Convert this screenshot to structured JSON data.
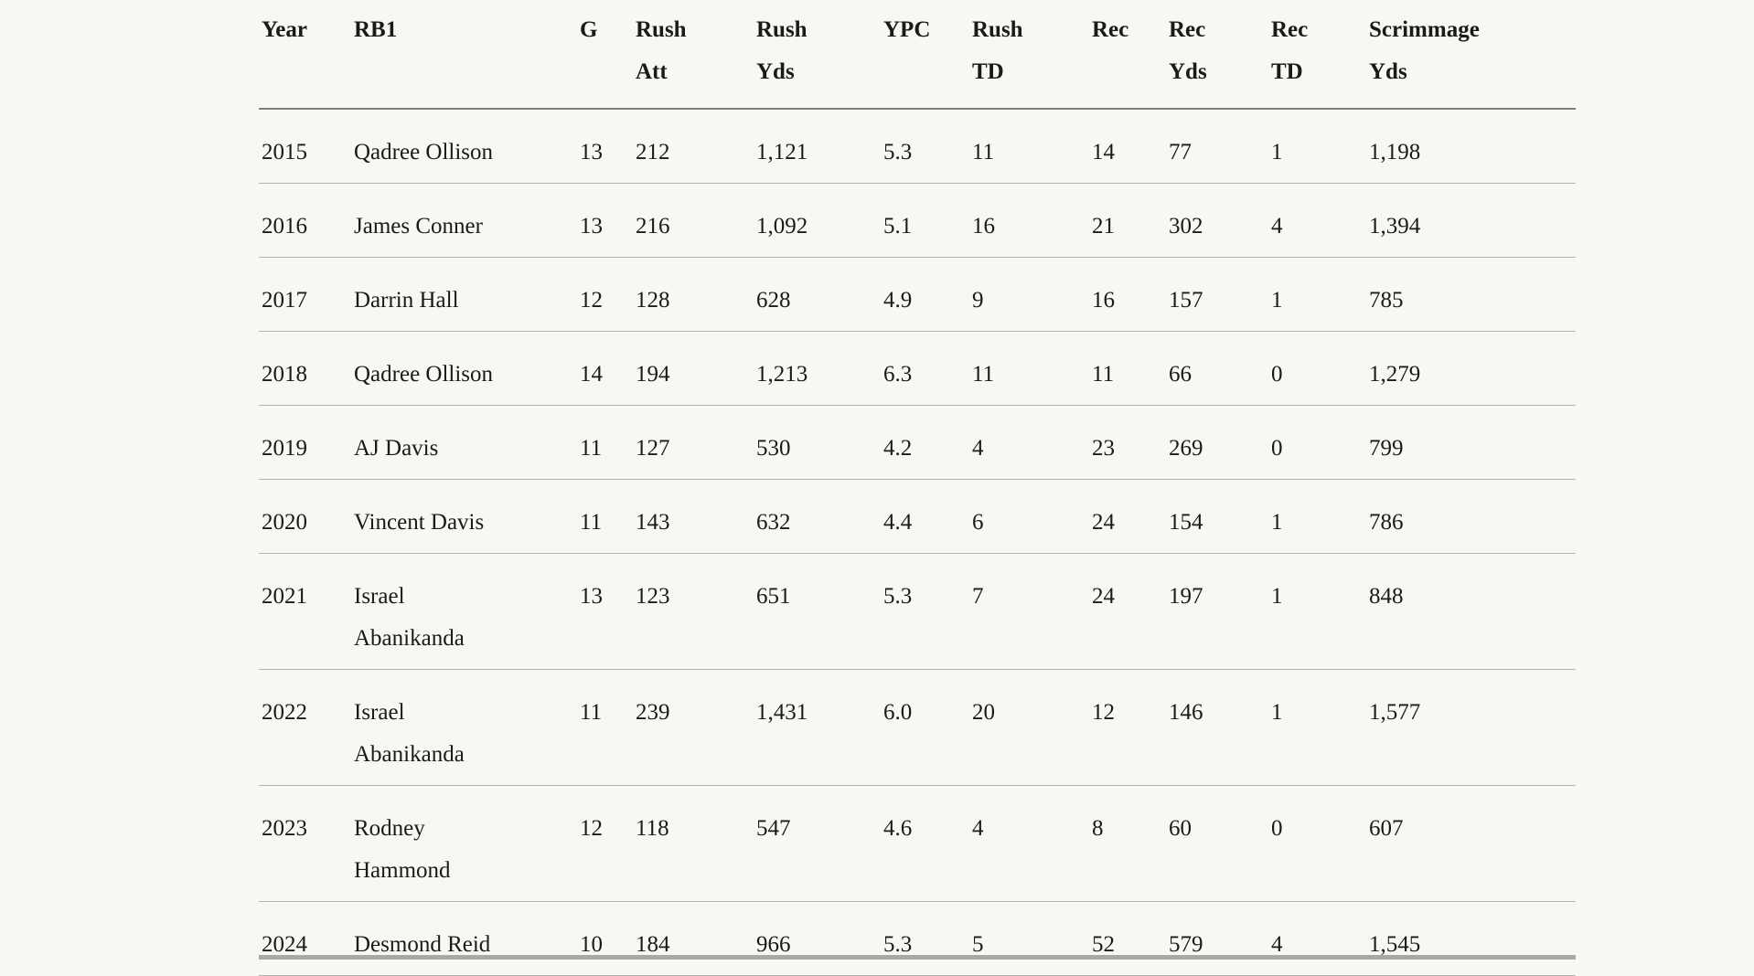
{
  "page": {
    "background_color": "#f8f7f2",
    "text_color": "#1b1a18",
    "header_rule_color": "#7e7d79",
    "row_rule_color": "#b5b3ae",
    "scrollbar_color": "#a9a8a3"
  },
  "table": {
    "columns": [
      {
        "id": "year",
        "label": "Year"
      },
      {
        "id": "rb1",
        "label": "RB1"
      },
      {
        "id": "g",
        "label": "G"
      },
      {
        "id": "rush_att",
        "label": "Rush Att"
      },
      {
        "id": "rush_yds",
        "label": "Rush Yds"
      },
      {
        "id": "ypc",
        "label": "YPC"
      },
      {
        "id": "rush_td",
        "label": "Rush TD"
      },
      {
        "id": "rec",
        "label": "Rec"
      },
      {
        "id": "rec_yds",
        "label": "Rec Yds"
      },
      {
        "id": "rec_td",
        "label": "Rec TD"
      },
      {
        "id": "scrimmage_yds",
        "label": "Scrimmage Yds"
      }
    ],
    "rows": [
      [
        "2015",
        "Qadree Ollison",
        "13",
        "212",
        "1,121",
        "5.3",
        "11",
        "14",
        "77",
        "1",
        "1,198"
      ],
      [
        "2016",
        "James Conner",
        "13",
        "216",
        "1,092",
        "5.1",
        "16",
        "21",
        "302",
        "4",
        "1,394"
      ],
      [
        "2017",
        "Darrin Hall",
        "12",
        "128",
        "628",
        "4.9",
        "9",
        "16",
        "157",
        "1",
        "785"
      ],
      [
        "2018",
        "Qadree Ollison",
        "14",
        "194",
        "1,213",
        "6.3",
        "11",
        "11",
        "66",
        "0",
        "1,279"
      ],
      [
        "2019",
        "AJ Davis",
        "11",
        "127",
        "530",
        "4.2",
        "4",
        "23",
        "269",
        "0",
        "799"
      ],
      [
        "2020",
        "Vincent Davis",
        "11",
        "143",
        "632",
        "4.4",
        "6",
        "24",
        "154",
        "1",
        "786"
      ],
      [
        "2021",
        "Israel Abanikanda",
        "13",
        "123",
        "651",
        "5.3",
        "7",
        "24",
        "197",
        "1",
        "848"
      ],
      [
        "2022",
        "Israel Abanikanda",
        "11",
        "239",
        "1,431",
        "6.0",
        "20",
        "12",
        "146",
        "1",
        "1,577"
      ],
      [
        "2023",
        "Rodney Hammond",
        "12",
        "118",
        "547",
        "4.6",
        "4",
        "8",
        "60",
        "0",
        "607"
      ],
      [
        "2024",
        "Desmond Reid",
        "10",
        "184",
        "966",
        "5.3",
        "5",
        "52",
        "579",
        "4",
        "1,545"
      ]
    ]
  }
}
